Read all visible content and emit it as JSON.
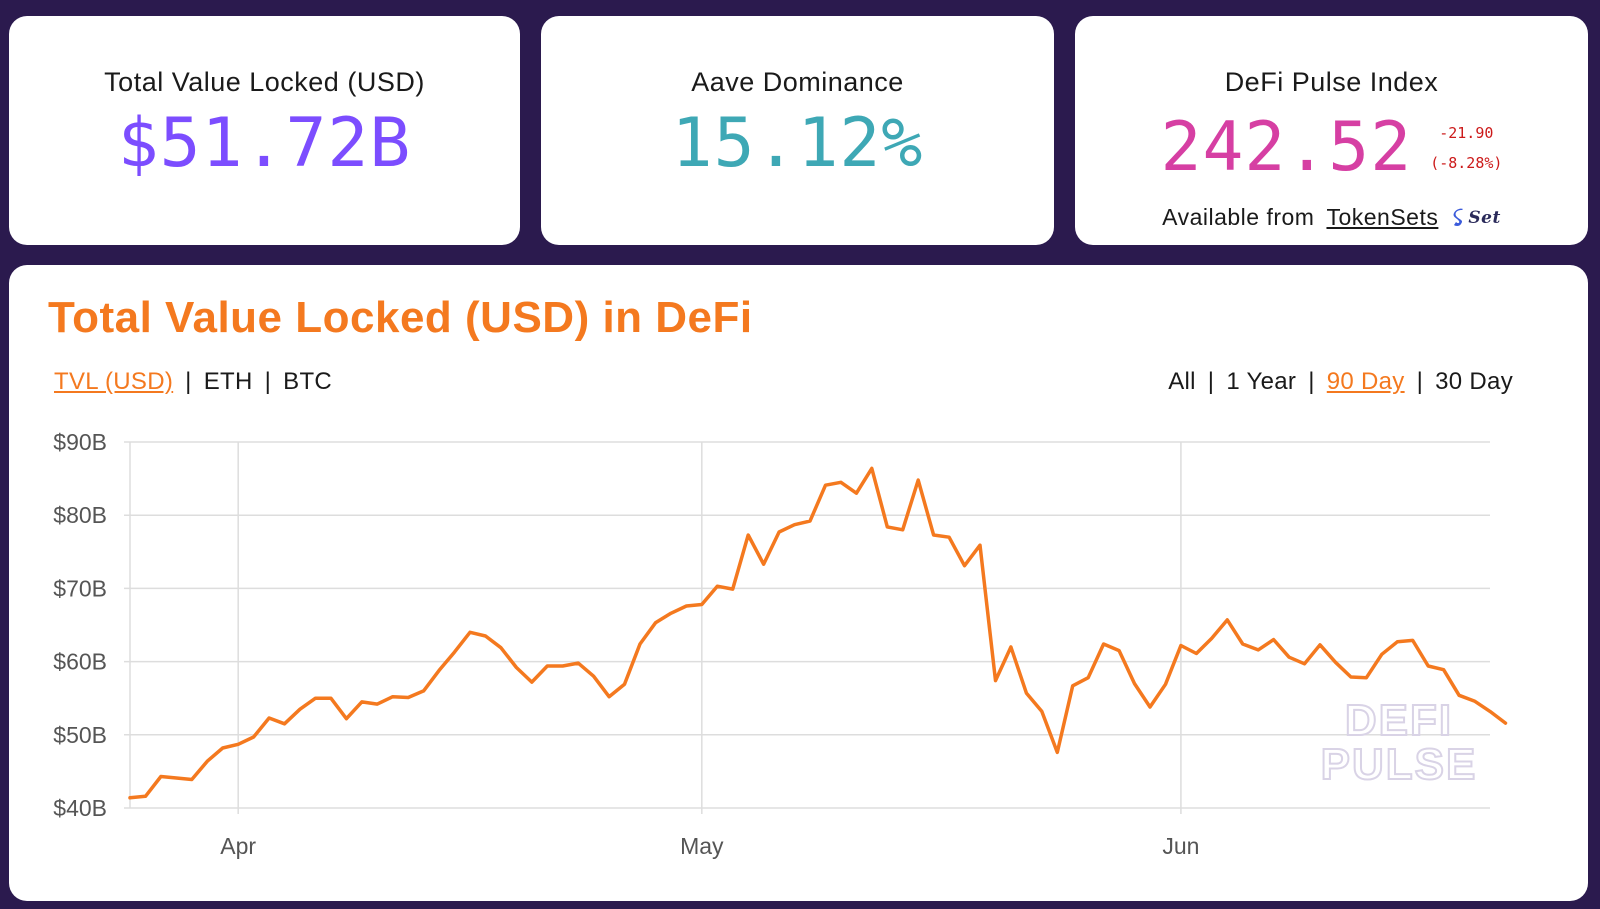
{
  "stats": {
    "tvl": {
      "title": "Total Value Locked (USD)",
      "value": "$51.72B",
      "color": "#7c4dff"
    },
    "aave": {
      "title": "Aave Dominance",
      "value": "15.12%",
      "color": "#3ea8b5"
    },
    "dpi": {
      "title": "DeFi Pulse Index",
      "value": "242.52",
      "color": "#d63fa3",
      "change_abs": "-21.90",
      "change_pct": "(-8.28%)",
      "change_color": "#cc1a1a",
      "available_label": "Available from",
      "available_link": "TokenSets",
      "logo_text": "Set"
    }
  },
  "chart_section": {
    "title": "Total Value Locked (USD) in DeFi",
    "metric_toggles": [
      {
        "label": "TVL (USD)",
        "active": true
      },
      {
        "label": "ETH",
        "active": false
      },
      {
        "label": "BTC",
        "active": false
      }
    ],
    "range_toggles": [
      {
        "label": "All",
        "active": false
      },
      {
        "label": "1 Year",
        "active": false
      },
      {
        "label": "90 Day",
        "active": true
      },
      {
        "label": "30 Day",
        "active": false
      }
    ],
    "watermark": [
      "DEFI",
      "PULSE"
    ]
  },
  "chart_data": {
    "type": "line",
    "line_color": "#f4791f",
    "ytick_labels": [
      "$40B",
      "$50B",
      "$60B",
      "$70B",
      "$80B",
      "$90B"
    ],
    "ylim": [
      40,
      90
    ],
    "xtick_labels": [
      "Apr",
      "May",
      "Jun"
    ],
    "xtick_positions": [
      7,
      37,
      68
    ],
    "x_range": [
      0,
      88
    ],
    "grid": true,
    "series": [
      {
        "values": [
          41.4,
          41.6,
          44.3,
          44.1,
          43.9,
          46.4,
          48.2,
          48.7,
          49.7,
          52.3,
          51.5,
          53.5,
          55.0,
          55.0,
          52.2,
          54.5,
          54.2,
          55.2,
          55.1,
          56.0,
          58.8,
          61.3,
          64.0,
          63.5,
          61.9,
          59.2,
          57.2,
          59.4,
          59.4,
          59.8,
          58.0,
          55.2,
          56.9,
          62.4,
          65.3,
          66.6,
          67.6,
          67.8,
          70.3,
          69.9,
          77.3,
          73.3,
          77.7,
          78.7,
          79.2,
          84.1,
          84.5,
          83.0,
          86.4,
          78.4,
          78.0,
          84.8,
          77.3,
          77.0,
          73.1,
          75.9,
          57.4,
          62.0,
          55.7,
          53.2,
          47.6,
          56.7,
          57.8,
          62.4,
          61.5,
          57.0,
          53.8,
          56.9,
          62.2,
          61.1,
          63.2,
          65.7,
          62.4,
          61.6,
          63.0,
          60.6,
          59.7,
          62.3,
          59.9,
          57.9,
          57.8,
          61.0,
          62.7,
          62.9,
          59.4,
          58.9,
          55.4,
          54.6,
          53.2,
          51.6
        ]
      }
    ]
  }
}
